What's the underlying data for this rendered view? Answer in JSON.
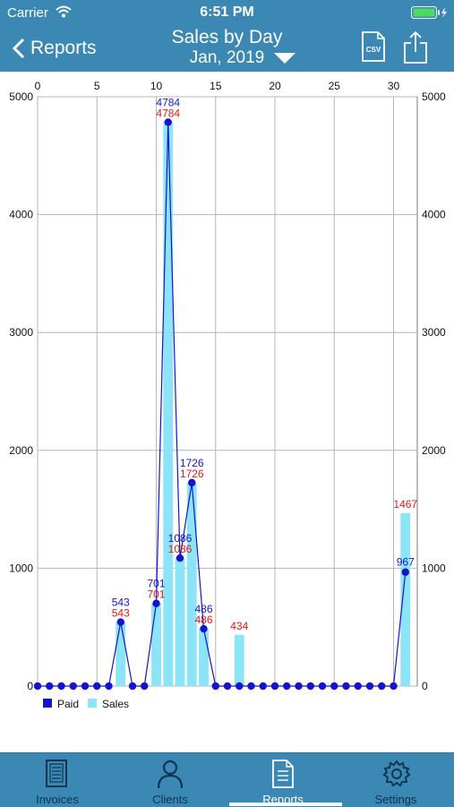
{
  "status": {
    "carrier": "Carrier",
    "time": "6:51 PM"
  },
  "nav": {
    "back_label": "Reports",
    "title": "Sales by Day",
    "subtitle": "Jan, 2019",
    "csv_label": "CSV"
  },
  "tabs": [
    {
      "label": "Invoices",
      "icon": "invoice-icon"
    },
    {
      "label": "Clients",
      "icon": "person-icon"
    },
    {
      "label": "Reports",
      "icon": "report-icon",
      "active": true
    },
    {
      "label": "Settings",
      "icon": "gear-icon"
    }
  ],
  "colors": {
    "bar": "#8be4f8",
    "line": "#1414cc",
    "sales_label": "#e01818",
    "paid_label": "#1414cc",
    "nav": "#3b88b5"
  },
  "chart_data": {
    "type": "bar+line",
    "xlim": [
      0,
      32
    ],
    "ylim": [
      0,
      5000
    ],
    "x_ticks": [
      "0",
      "5",
      "10",
      "15",
      "20",
      "25",
      "30"
    ],
    "y_ticks": [
      "0",
      "1000",
      "2000",
      "3000",
      "4000",
      "5000"
    ],
    "grid": true,
    "legend_position": "bottom-left",
    "series": [
      {
        "name": "Paid",
        "type": "line",
        "x": [
          0,
          1,
          2,
          3,
          4,
          5,
          6,
          7,
          8,
          9,
          10,
          11,
          12,
          13,
          14,
          15,
          16,
          17,
          18,
          19,
          20,
          21,
          22,
          23,
          24,
          25,
          26,
          27,
          28,
          29,
          30,
          31
        ],
        "values": [
          0,
          0,
          0,
          0,
          0,
          0,
          0,
          543,
          0,
          0,
          701,
          4784,
          1086,
          1726,
          486,
          0,
          0,
          0,
          0,
          0,
          0,
          0,
          0,
          0,
          0,
          0,
          0,
          0,
          0,
          0,
          0,
          967
        ],
        "labels": [
          {
            "x": 7,
            "text": "543"
          },
          {
            "x": 10,
            "text": "701"
          },
          {
            "x": 11,
            "text": "4784"
          },
          {
            "x": 12,
            "text": "1086"
          },
          {
            "x": 13,
            "text": "1726"
          },
          {
            "x": 14,
            "text": "486"
          },
          {
            "x": 31,
            "text": "967"
          }
        ]
      },
      {
        "name": "Sales",
        "type": "bar",
        "x": [
          7,
          10,
          11,
          12,
          13,
          14,
          17,
          31
        ],
        "values": [
          543,
          701,
          4784,
          1086,
          1726,
          486,
          434,
          1467
        ],
        "labels": [
          {
            "x": 7,
            "text": "543"
          },
          {
            "x": 10,
            "text": "701"
          },
          {
            "x": 11,
            "text": "4784"
          },
          {
            "x": 12,
            "text": "1086"
          },
          {
            "x": 13,
            "text": "1726"
          },
          {
            "x": 14,
            "text": "486"
          },
          {
            "x": 17,
            "text": "434"
          },
          {
            "x": 31,
            "text": "1467"
          }
        ]
      }
    ]
  }
}
